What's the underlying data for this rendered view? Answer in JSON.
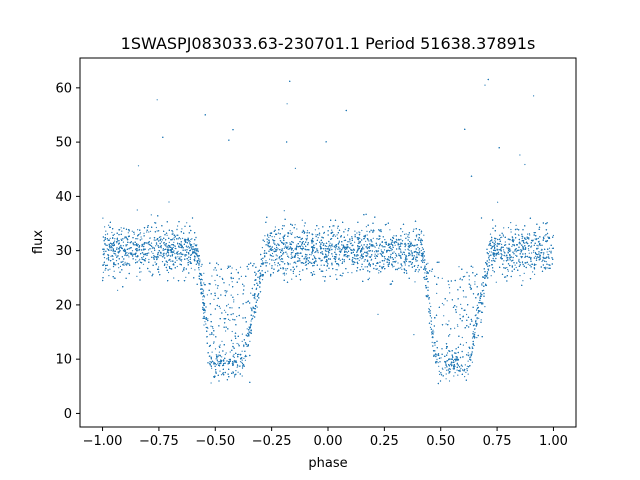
{
  "chart_data": {
    "type": "scatter",
    "title": "1SWASPJ083033.63-230701.1 Period 51638.37891s",
    "xlabel": "phase",
    "ylabel": "flux",
    "xlim": [
      -1.1,
      1.1
    ],
    "ylim": [
      -2.5,
      65.5
    ],
    "xticks": [
      -1.0,
      -0.75,
      -0.5,
      -0.25,
      0.0,
      0.25,
      0.5,
      0.75,
      1.0
    ],
    "xtick_labels": [
      "−1.00",
      "−0.75",
      "−0.50",
      "−0.25",
      "0.00",
      "0.25",
      "0.50",
      "0.75",
      "1.00"
    ],
    "yticks": [
      0,
      10,
      20,
      30,
      40,
      50,
      60
    ],
    "ytick_labels": [
      "0",
      "10",
      "20",
      "30",
      "40",
      "50",
      "60"
    ],
    "grid": false,
    "series": [
      {
        "color": "#1f77b4",
        "marker_size": 0.6,
        "profile": {
          "baseline_flux": 30,
          "scatter_sigma": 2.2,
          "eclipse_minimum_flux": 8.8,
          "eclipse_ingress_phase": [
            -0.58,
            0.42
          ],
          "eclipse_flat_bottom_phase": [
            [
              -0.52,
              -0.38
            ],
            [
              0.48,
              0.62
            ]
          ],
          "eclipse_egress_phase": [
            -0.28,
            0.72
          ],
          "phase_range": [
            -1.0,
            1.0
          ]
        }
      }
    ]
  }
}
